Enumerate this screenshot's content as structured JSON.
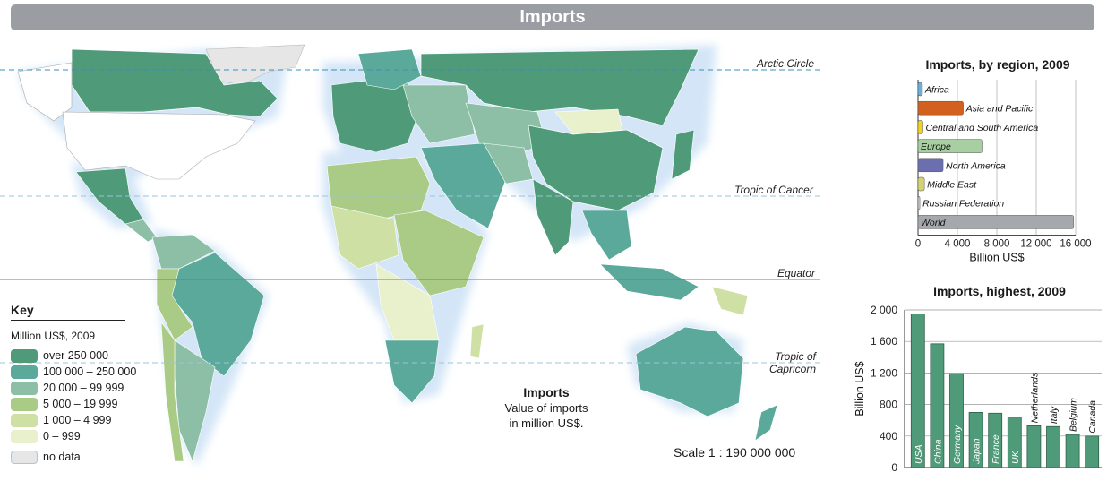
{
  "title": "Imports",
  "map": {
    "lines": {
      "arctic": "Arctic Circle",
      "cancer": "Tropic of Cancer",
      "equator": "Equator",
      "capricorn_1": "Tropic of",
      "capricorn_2": "Capricorn"
    },
    "caption_title": "Imports",
    "caption_line1": "Value of imports",
    "caption_line2": "in million US$.",
    "scale": "Scale 1 : 190 000 000"
  },
  "key": {
    "title": "Key",
    "subtitle": "Million US$, 2009",
    "items": [
      {
        "label": "over 250 000",
        "color": "#4f9a78"
      },
      {
        "label": "100 000 – 250 000",
        "color": "#5aa99a"
      },
      {
        "label": "20 000 – 99 999",
        "color": "#8cbfa6"
      },
      {
        "label": "5 000 – 19 999",
        "color": "#aacb86"
      },
      {
        "label": "1 000 – 4 999",
        "color": "#cfe0a4"
      },
      {
        "label": "0 – 999",
        "color": "#e9f0cc"
      },
      {
        "label": "no data",
        "color": "#e6e6e6"
      }
    ]
  },
  "chart_data": [
    {
      "type": "bar",
      "orientation": "horizontal",
      "title": "Imports, by region, 2009",
      "xlabel": "Billion US$",
      "xlim": [
        0,
        16000
      ],
      "xticks": [
        "0",
        "4 000",
        "8 000",
        "12 000",
        "16 000"
      ],
      "categories": [
        "Africa",
        "Asia and Pacific",
        "Central and South America",
        "Europe",
        "North America",
        "Middle East",
        "Russian Federation",
        "World"
      ],
      "values": [
        450,
        4600,
        500,
        6500,
        2550,
        650,
        190,
        15800
      ],
      "colors": [
        "#6aaee0",
        "#d2601f",
        "#f2d31b",
        "#a8cfa2",
        "#6b6fb0",
        "#d3d376",
        "#cccccc",
        "#a5a8ad"
      ]
    },
    {
      "type": "bar",
      "title": "Imports, highest, 2009",
      "ylabel": "Billion US$",
      "ylim": [
        0,
        2000
      ],
      "yticks": [
        "0",
        "400",
        "800",
        "1 200",
        "1 600",
        "2 000"
      ],
      "categories": [
        "USA",
        "China",
        "Germany",
        "Japan",
        "France",
        "UK",
        "Netherlands",
        "Italy",
        "Belgium",
        "Canada"
      ],
      "values": [
        1950,
        1570,
        1190,
        700,
        690,
        640,
        530,
        520,
        420,
        400
      ],
      "color": "#4f9a78"
    }
  ]
}
